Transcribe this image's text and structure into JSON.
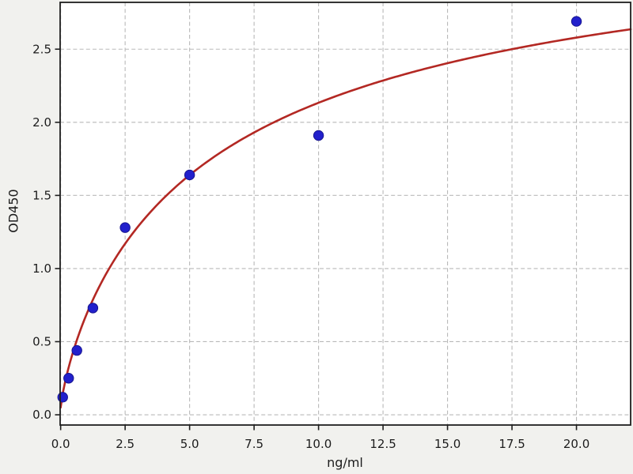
{
  "figure": {
    "background_color": "#f1f1ee",
    "plot_background_color": "#ffffff",
    "grid_color": "#b9b9b9",
    "spine_color": "#1f1f1f",
    "tick_color": "#1f1f1f"
  },
  "chart_data": {
    "type": "scatter",
    "title": "",
    "xlabel": "ng/ml",
    "ylabel": "OD450",
    "xlim": [
      -0.02,
      22.1
    ],
    "ylim": [
      -0.07,
      2.82
    ],
    "grid": true,
    "grid_style": "dashed",
    "legend_position": "none",
    "x_ticks": {
      "values": [
        0,
        2.5,
        5,
        7.5,
        10,
        12.5,
        15,
        17.5,
        20
      ],
      "labels": [
        "0.0",
        "2.5",
        "5.0",
        "7.5",
        "10.0",
        "12.5",
        "15.0",
        "17.5",
        "20.0"
      ]
    },
    "y_ticks": {
      "values": [
        0,
        0.5,
        1.0,
        1.5,
        2.0,
        2.5
      ],
      "labels": [
        "0.0",
        "0.5",
        "1.0",
        "1.5",
        "2.0",
        "2.5"
      ]
    },
    "series": [
      {
        "name": "standard-points",
        "type": "scatter",
        "marker": "circle",
        "marker_radius": 6.2,
        "color": "#2220cc",
        "edge_color": "#17158f",
        "points": [
          [
            0.08,
            0.12
          ],
          [
            0.31,
            0.25
          ],
          [
            0.63,
            0.44
          ],
          [
            1.25,
            0.73
          ],
          [
            2.5,
            1.28
          ],
          [
            5.0,
            1.64
          ],
          [
            10.0,
            1.91
          ],
          [
            20.0,
            2.69
          ]
        ]
      },
      {
        "name": "fit-curve",
        "type": "line",
        "color": "#b32823",
        "line_width": 2.6,
        "fit_model": "4PL",
        "fit_params": {
          "A": 0.05,
          "B": 0.82,
          "C": 6.3,
          "D": 3.56
        },
        "x_range": [
          0,
          22.1
        ]
      }
    ]
  }
}
